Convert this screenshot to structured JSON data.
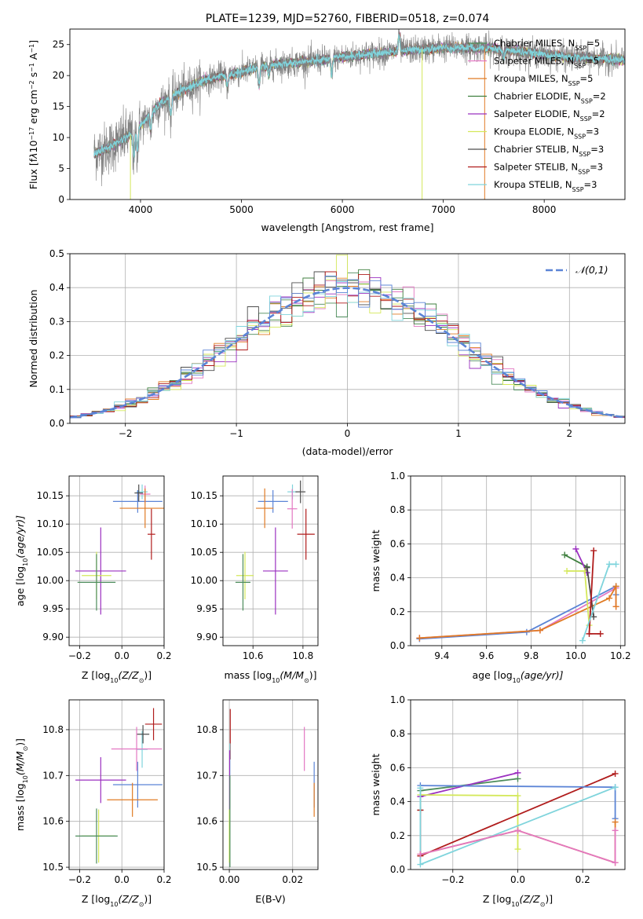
{
  "colors": {
    "chabrier_miles": "#4c8c5b",
    "salpeter_miles": "#e377c2",
    "kroupa_miles": "#e07b24",
    "chabrier_elodie": "#3f7f3f",
    "salpeter_elodie": "#9b30c0",
    "kroupa_elodie": "#d4e85a",
    "chabrier_stelib": "#4d4d4d",
    "salpeter_stelib": "#b01c1c",
    "kroupa_stelib": "#7fd4dc",
    "blue": "#5b84d6",
    "grid": "#b0b0b0"
  },
  "chart_data": [
    {
      "id": "spectrum",
      "type": "line",
      "title": "PLATE=1239, MJD=52760, FIBERID=0518, z=0.074",
      "xlabel": "wavelength [Angstrom, rest frame]",
      "ylabel_parts": [
        "Flux [f",
        "λ",
        "10",
        "−17",
        " erg cm",
        "−2",
        " s",
        "−1",
        " A",
        "−1",
        "]"
      ],
      "xlim": [
        3300,
        8800
      ],
      "ylim": [
        0,
        27.5
      ],
      "xticks": [
        4000,
        5000,
        6000,
        7000,
        8000
      ],
      "yticks": [
        0,
        5,
        10,
        15,
        20,
        25
      ],
      "grid": false,
      "legend_position": "right",
      "legend": [
        {
          "label": "Chabrier MILES, N",
          "sub": "SSP",
          "tail": "=5",
          "color_key": "chabrier_miles"
        },
        {
          "label": "Salpeter MILES, N",
          "sub": "SSP",
          "tail": "=5",
          "color_key": "salpeter_miles"
        },
        {
          "label": "Kroupa MILES, N",
          "sub": "SSP",
          "tail": "=5",
          "color_key": "kroupa_miles"
        },
        {
          "label": "Chabrier ELODIE, N",
          "sub": "SSP",
          "tail": "=2",
          "color_key": "chabrier_elodie"
        },
        {
          "label": "Salpeter ELODIE, N",
          "sub": "SSP",
          "tail": "=2",
          "color_key": "salpeter_elodie"
        },
        {
          "label": "Kroupa ELODIE, N",
          "sub": "SSP",
          "tail": "=3",
          "color_key": "kroupa_elodie"
        },
        {
          "label": "Chabrier STELIB, N",
          "sub": "SSP",
          "tail": "=3",
          "color_key": "chabrier_stelib"
        },
        {
          "label": "Salpeter STELIB, N",
          "sub": "SSP",
          "tail": "=3",
          "color_key": "salpeter_stelib"
        },
        {
          "label": "Kroupa STELIB, N",
          "sub": "SSP",
          "tail": "=3",
          "color_key": "kroupa_stelib"
        }
      ],
      "continuum": [
        [
          3550,
          7.5
        ],
        [
          3700,
          8.5
        ],
        [
          3900,
          10.5
        ],
        [
          4000,
          12
        ],
        [
          4200,
          15.5
        ],
        [
          4400,
          17.5
        ],
        [
          4600,
          19
        ],
        [
          4800,
          20
        ],
        [
          5000,
          20.5
        ],
        [
          5200,
          21.5
        ],
        [
          5500,
          22
        ],
        [
          5800,
          22.5
        ],
        [
          6000,
          23
        ],
        [
          6300,
          23.5
        ],
        [
          6600,
          24
        ],
        [
          7000,
          24.5
        ],
        [
          7400,
          24.5
        ],
        [
          7800,
          23.8
        ],
        [
          8200,
          23
        ],
        [
          8800,
          22.5
        ]
      ],
      "features": [
        {
          "x": 3934,
          "depth": -4.5,
          "label": ""
        },
        {
          "x": 3969,
          "depth": -3.5,
          "label": ""
        },
        {
          "x": 4101,
          "depth": -2.5,
          "label": ""
        },
        {
          "x": 4300,
          "depth": -3.0,
          "label": ""
        },
        {
          "x": 4861,
          "depth": -2.0,
          "label": ""
        },
        {
          "x": 5175,
          "depth": -3.0,
          "label": ""
        },
        {
          "x": 5270,
          "depth": -1.5,
          "label": ""
        },
        {
          "x": 5893,
          "depth": -2.5,
          "label": ""
        },
        {
          "x": 6563,
          "depth": 2.5,
          "label": ""
        },
        {
          "x": 7600,
          "depth": -1.5,
          "label": ""
        }
      ],
      "data_range": [
        3540,
        8800
      ],
      "model_spikes": [
        {
          "x": 3900,
          "ylow": 0,
          "color_key": "kroupa_elodie"
        },
        {
          "x": 6790,
          "ylow": 0,
          "color_key": "kroupa_elodie"
        },
        {
          "x": 7410,
          "ylow": 0,
          "color_key": "kroupa_miles"
        }
      ]
    },
    {
      "id": "residuals",
      "type": "line",
      "xlabel": "(data-model)/error",
      "ylabel": "Normed distribution",
      "xlim": [
        -2.5,
        2.5
      ],
      "ylim": [
        0,
        0.5
      ],
      "xticks": [
        -2,
        -1,
        0,
        1,
        2
      ],
      "xtick_labels": [
        "−2",
        "−1",
        "0",
        "1",
        "2"
      ],
      "yticks": [
        0.0,
        0.1,
        0.2,
        0.3,
        0.4,
        0.5
      ],
      "ytick_labels": [
        "0.0",
        "0.1",
        "0.2",
        "0.3",
        "0.4",
        "0.5"
      ],
      "grid": true,
      "bin_width": 0.1,
      "legend_position": "top-right",
      "legend": [
        {
          "label": "𝒩(0,1)",
          "style": "dashed",
          "color_key": "blue"
        }
      ],
      "series_colors": [
        "chabrier_miles",
        "salpeter_miles",
        "kroupa_miles",
        "chabrier_elodie",
        "salpeter_elodie",
        "kroupa_elodie",
        "chabrier_stelib",
        "salpeter_stelib",
        "kroupa_stelib",
        "blue"
      ]
    },
    {
      "id": "age_vs_Z",
      "type": "scatter",
      "xlabel_parts": [
        "Z [log",
        "10",
        "(Z/Z",
        "⊙",
        ")]"
      ],
      "ylabel_parts": [
        "age  [log",
        "10",
        "(age/yr)]"
      ],
      "xlim": [
        -0.25,
        0.2
      ],
      "ylim": [
        9.885,
        10.185
      ],
      "xticks": [
        -0.2,
        0.0,
        0.2
      ],
      "xtick_labels": [
        "−0.2",
        "0.0",
        "0.2"
      ],
      "yticks": [
        9.9,
        9.95,
        10.0,
        10.05,
        10.1,
        10.15
      ],
      "ytick_labels": [
        "9.90",
        "9.95",
        "10.00",
        "10.05",
        "10.10",
        "10.15"
      ],
      "grid": true,
      "points": [
        {
          "x": 0.096,
          "y": 10.157,
          "xerr": 0.026,
          "yerr": 0.013,
          "color_key": "kroupa_stelib"
        },
        {
          "x": 0.075,
          "y": 10.14,
          "xerr": 0.117,
          "yerr": 0.02,
          "color_key": "blue"
        },
        {
          "x": 0.08,
          "y": 10.155,
          "xerr": 0.02,
          "yerr": 0.015,
          "color_key": "chabrier_stelib"
        },
        {
          "x": 0.11,
          "y": 10.153,
          "xerr": 0.025,
          "yerr": 0.015,
          "color_key": "salpeter_miles"
        },
        {
          "x": 0.11,
          "y": 10.128,
          "xerr": 0.12,
          "yerr": 0.035,
          "color_key": "kroupa_miles"
        },
        {
          "x": 0.14,
          "y": 10.082,
          "xerr": 0.018,
          "yerr": 0.045,
          "color_key": "salpeter_stelib"
        },
        {
          "x": -0.1,
          "y": 10.017,
          "xerr": 0.12,
          "yerr": 0.077,
          "color_key": "salpeter_elodie"
        },
        {
          "x": -0.12,
          "y": 10.009,
          "xerr": 0.07,
          "yerr": 0.042,
          "color_key": "kroupa_elodie"
        },
        {
          "x": -0.12,
          "y": 9.997,
          "xerr": 0.09,
          "yerr": 0.05,
          "color_key": "chabrier_miles"
        }
      ]
    },
    {
      "id": "age_vs_mass",
      "type": "scatter",
      "xlabel_parts": [
        "mass [log",
        "10",
        "(M/M",
        "⊙",
        ")]"
      ],
      "xlim": [
        10.48,
        10.86
      ],
      "ylim": [
        9.885,
        10.185
      ],
      "xticks": [
        10.6,
        10.8
      ],
      "xtick_labels": [
        "10.6",
        "10.8"
      ],
      "yticks": [
        9.9,
        9.95,
        10.0,
        10.05,
        10.1,
        10.15
      ],
      "ytick_labels": [
        "9.90",
        "9.95",
        "10.00",
        "10.05",
        "10.10",
        "10.15"
      ],
      "grid": true,
      "points": [
        {
          "x": 10.758,
          "y": 10.157,
          "xerr": 0.02,
          "yerr": 0.013,
          "color_key": "kroupa_stelib"
        },
        {
          "x": 10.68,
          "y": 10.14,
          "xerr": 0.06,
          "yerr": 0.02,
          "color_key": "blue"
        },
        {
          "x": 10.79,
          "y": 10.157,
          "xerr": 0.02,
          "yerr": 0.02,
          "color_key": "chabrier_stelib"
        },
        {
          "x": 10.757,
          "y": 10.127,
          "xerr": 0.02,
          "yerr": 0.035,
          "color_key": "salpeter_miles"
        },
        {
          "x": 10.647,
          "y": 10.128,
          "xerr": 0.035,
          "yerr": 0.035,
          "color_key": "kroupa_miles"
        },
        {
          "x": 10.812,
          "y": 10.082,
          "xerr": 0.035,
          "yerr": 0.045,
          "color_key": "salpeter_stelib"
        },
        {
          "x": 10.69,
          "y": 10.017,
          "xerr": 0.05,
          "yerr": 0.077,
          "color_key": "salpeter_elodie"
        },
        {
          "x": 10.568,
          "y": 10.009,
          "xerr": 0.035,
          "yerr": 0.042,
          "color_key": "kroupa_elodie"
        },
        {
          "x": 10.56,
          "y": 9.997,
          "xerr": 0.03,
          "yerr": 0.05,
          "color_key": "chabrier_miles"
        }
      ]
    },
    {
      "id": "weight_vs_age",
      "type": "line",
      "xlabel_parts": [
        "age  [log",
        "10",
        "(age/yr)]"
      ],
      "ylabel": "mass weight",
      "xlim": [
        9.26,
        10.22
      ],
      "ylim": [
        0,
        1
      ],
      "xticks": [
        9.4,
        9.6,
        9.8,
        10.0,
        10.2
      ],
      "xtick_labels": [
        "9.4",
        "9.6",
        "9.8",
        "10.0",
        "10.2"
      ],
      "yticks": [
        0.0,
        0.2,
        0.4,
        0.6,
        0.8,
        1.0
      ],
      "ytick_labels": [
        "0.0",
        "0.2",
        "0.4",
        "0.6",
        "0.8",
        "1.0"
      ],
      "grid": true,
      "series": [
        {
          "color_key": "blue",
          "x": [
            9.3,
            9.78,
            10.18,
            10.18
          ],
          "y": [
            0.04,
            0.08,
            0.35,
            0.3
          ]
        },
        {
          "color_key": "salpeter_miles",
          "x": [
            9.3,
            9.84,
            10.18,
            10.18
          ],
          "y": [
            0.045,
            0.09,
            0.34,
            0.23
          ]
        },
        {
          "color_key": "kroupa_miles",
          "x": [
            9.3,
            9.84,
            10.15,
            10.18,
            10.18
          ],
          "y": [
            0.045,
            0.09,
            0.28,
            0.35,
            0.23
          ]
        },
        {
          "color_key": "chabrier_elodie",
          "x": [
            9.95,
            10.05
          ],
          "y": [
            0.535,
            0.465
          ]
        },
        {
          "color_key": "salpeter_elodie",
          "x": [
            10.0,
            10.05
          ],
          "y": [
            0.57,
            0.43
          ]
        },
        {
          "color_key": "kroupa_elodie",
          "x": [
            9.96,
            10.04,
            10.06
          ],
          "y": [
            0.44,
            0.44,
            0.12
          ]
        },
        {
          "color_key": "chabrier_stelib",
          "x": [
            10.05,
            10.08
          ],
          "y": [
            0.46,
            0.17
          ]
        },
        {
          "color_key": "salpeter_stelib",
          "x": [
            10.08,
            10.06,
            10.11
          ],
          "y": [
            0.56,
            0.07,
            0.07
          ]
        },
        {
          "color_key": "kroupa_stelib",
          "x": [
            10.03,
            10.15,
            10.18
          ],
          "y": [
            0.03,
            0.48,
            0.48
          ]
        }
      ]
    },
    {
      "id": "mass_vs_Z",
      "type": "scatter",
      "xlabel_parts": [
        "Z [log",
        "10",
        "(Z/Z",
        "⊙",
        ")]"
      ],
      "ylabel_parts": [
        "mass [log",
        "10",
        "(M/M",
        "⊙",
        ")]"
      ],
      "xlim": [
        -0.25,
        0.2
      ],
      "ylim": [
        10.495,
        10.865
      ],
      "xticks": [
        -0.2,
        0.0,
        0.2
      ],
      "xtick_labels": [
        "−0.2",
        "0.0",
        "0.2"
      ],
      "yticks": [
        10.5,
        10.6,
        10.7,
        10.8
      ],
      "ytick_labels": [
        "10.5",
        "10.6",
        "10.7",
        "10.8"
      ],
      "grid": true,
      "points": [
        {
          "x": 0.096,
          "y": 10.757,
          "xerr": 0.026,
          "yerr": 0.04,
          "color_key": "kroupa_stelib"
        },
        {
          "x": 0.075,
          "y": 10.68,
          "xerr": 0.117,
          "yerr": 0.05,
          "color_key": "blue"
        },
        {
          "x": 0.1,
          "y": 10.79,
          "xerr": 0.03,
          "yerr": 0.02,
          "color_key": "chabrier_stelib"
        },
        {
          "x": 0.07,
          "y": 10.758,
          "xerr": 0.12,
          "yerr": 0.048,
          "color_key": "salpeter_miles"
        },
        {
          "x": 0.05,
          "y": 10.647,
          "xerr": 0.12,
          "yerr": 0.037,
          "color_key": "kroupa_miles"
        },
        {
          "x": 0.15,
          "y": 10.812,
          "xerr": 0.04,
          "yerr": 0.035,
          "color_key": "salpeter_stelib"
        },
        {
          "x": -0.1,
          "y": 10.69,
          "xerr": 0.12,
          "yerr": 0.05,
          "color_key": "salpeter_elodie"
        },
        {
          "x": -0.11,
          "y": 10.568,
          "xerr": 0.08,
          "yerr": 0.058,
          "color_key": "kroupa_elodie"
        },
        {
          "x": -0.12,
          "y": 10.568,
          "xerr": 0.1,
          "yerr": 0.06,
          "color_key": "chabrier_miles"
        }
      ]
    },
    {
      "id": "mass_vs_ebv",
      "type": "scatter",
      "xlabel": "E(B-V)",
      "xlim": [
        -0.002,
        0.028
      ],
      "ylim": [
        10.495,
        10.865
      ],
      "xticks": [
        0.0,
        0.02
      ],
      "xtick_labels": [
        "0.00",
        "0.02"
      ],
      "yticks": [
        10.5,
        10.6,
        10.7,
        10.8
      ],
      "ytick_labels": [
        "10.5",
        "10.6",
        "10.7",
        "10.8"
      ],
      "grid": true,
      "points": [
        {
          "x": 0.0003,
          "y": 10.79,
          "xerr": 0,
          "yerr": 0.055,
          "color_key": "salpeter_stelib"
        },
        {
          "x": 0.0002,
          "y": 10.7,
          "xerr": 0,
          "yerr": 0.07,
          "color_key": "kroupa_stelib"
        },
        {
          "x": 0.0001,
          "y": 10.69,
          "xerr": 0,
          "yerr": 0.065,
          "color_key": "salpeter_elodie"
        },
        {
          "x": 0.0,
          "y": 10.568,
          "xerr": 0,
          "yerr": 0.058,
          "color_key": "kroupa_elodie"
        },
        {
          "x": 0.0002,
          "y": 10.6,
          "xerr": 0,
          "yerr": 0.1,
          "color_key": "chabrier_miles"
        },
        {
          "x": 0.0237,
          "y": 10.758,
          "xerr": 0,
          "yerr": 0.048,
          "color_key": "salpeter_miles"
        },
        {
          "x": 0.0268,
          "y": 10.68,
          "xerr": 0,
          "yerr": 0.05,
          "color_key": "blue"
        },
        {
          "x": 0.0268,
          "y": 10.647,
          "xerr": 0,
          "yerr": 0.037,
          "color_key": "kroupa_miles"
        }
      ]
    },
    {
      "id": "weight_vs_Z",
      "type": "line",
      "xlabel_parts": [
        "Z [log",
        "10",
        "(Z/Z",
        "⊙",
        ")]"
      ],
      "ylabel": "mass weight",
      "xlim": [
        -0.33,
        0.33
      ],
      "ylim": [
        0,
        1
      ],
      "xticks": [
        -0.2,
        0.0,
        0.2
      ],
      "xtick_labels": [
        "−0.2",
        "0.0",
        "0.2"
      ],
      "yticks": [
        0.0,
        0.2,
        0.4,
        0.6,
        0.8,
        1.0
      ],
      "ytick_labels": [
        "0.0",
        "0.2",
        "0.4",
        "0.6",
        "0.8",
        "1.0"
      ],
      "grid": true,
      "series": [
        {
          "color_key": "chabrier_miles",
          "x": [
            -0.3,
            -0.3,
            0.0
          ],
          "y": [
            0.35,
            0.465,
            0.535
          ]
        },
        {
          "color_key": "salpeter_elodie",
          "x": [
            -0.3,
            0.0
          ],
          "y": [
            0.43,
            0.57
          ]
        },
        {
          "color_key": "kroupa_elodie",
          "x": [
            -0.3,
            0.0,
            0.0
          ],
          "y": [
            0.44,
            0.435,
            0.12
          ]
        },
        {
          "color_key": "salpeter_stelib",
          "x": [
            -0.3,
            -0.3,
            0.3
          ],
          "y": [
            0.35,
            0.08,
            0.565
          ]
        },
        {
          "color_key": "blue",
          "x": [
            -0.3,
            0.3,
            0.3
          ],
          "y": [
            0.495,
            0.485,
            0.3
          ]
        },
        {
          "color_key": "kroupa_stelib",
          "x": [
            -0.3,
            -0.3,
            0.3
          ],
          "y": [
            0.48,
            0.03,
            0.485
          ]
        },
        {
          "color_key": "kroupa_miles",
          "x": [
            -0.3,
            0.0,
            0.3,
            0.3
          ],
          "y": [
            0.09,
            0.23,
            0.04,
            0.28
          ]
        },
        {
          "color_key": "salpeter_miles",
          "x": [
            -0.3,
            0.0,
            0.3,
            0.3
          ],
          "y": [
            0.09,
            0.23,
            0.04,
            0.23
          ]
        }
      ]
    }
  ]
}
